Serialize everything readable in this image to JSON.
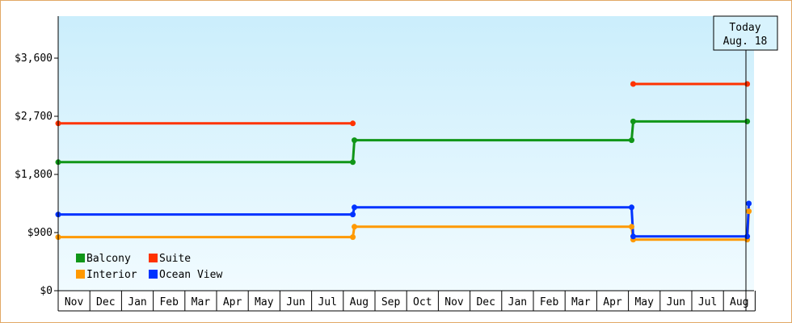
{
  "chart_data": {
    "type": "line",
    "step": true,
    "y_ticks": [
      {
        "value": 0,
        "label": "$0"
      },
      {
        "value": 900,
        "label": "$900"
      },
      {
        "value": 1800,
        "label": "$1,800"
      },
      {
        "value": 2700,
        "label": "$2,700"
      },
      {
        "value": 3600,
        "label": "$3,600"
      }
    ],
    "ylim": [
      0,
      4250
    ],
    "xlim": [
      0,
      21.75
    ],
    "months": [
      "Nov",
      "Dec",
      "Jan",
      "Feb",
      "Mar",
      "Apr",
      "May",
      "Jun",
      "Jul",
      "Aug",
      "Sep",
      "Oct",
      "Nov",
      "Dec",
      "Jan",
      "Feb",
      "Mar",
      "Apr",
      "May",
      "Jun",
      "Jul",
      "Aug"
    ],
    "today": {
      "line1": "Today",
      "line2": "Aug. 18",
      "x": 21.75
    },
    "grid": false,
    "legend_position": "bottom-left",
    "series": [
      {
        "name": "Balcony",
        "color": "#109618",
        "points": [
          [
            0,
            1990
          ],
          [
            9.3,
            1990
          ],
          [
            9.35,
            2330
          ],
          [
            18.1,
            2330
          ],
          [
            18.15,
            2620
          ],
          [
            21.75,
            2620
          ]
        ]
      },
      {
        "name": "Suite",
        "color": "#ff3300",
        "points": [
          [
            0,
            2590
          ],
          [
            9.3,
            2590
          ]
        ],
        "points_b": [
          [
            18.15,
            3200
          ],
          [
            21.75,
            3200
          ]
        ]
      },
      {
        "name": "Interior",
        "color": "#ff9900",
        "points": [
          [
            0,
            830
          ],
          [
            9.3,
            830
          ],
          [
            9.35,
            990
          ],
          [
            18.1,
            990
          ],
          [
            18.15,
            790
          ],
          [
            21.75,
            790
          ],
          [
            21.8,
            1230
          ]
        ]
      },
      {
        "name": "Ocean View",
        "color": "#0033ff",
        "points": [
          [
            0,
            1180
          ],
          [
            9.3,
            1180
          ],
          [
            9.35,
            1290
          ],
          [
            18.1,
            1290
          ],
          [
            18.15,
            840
          ],
          [
            21.75,
            840
          ],
          [
            21.8,
            1350
          ]
        ]
      }
    ]
  }
}
